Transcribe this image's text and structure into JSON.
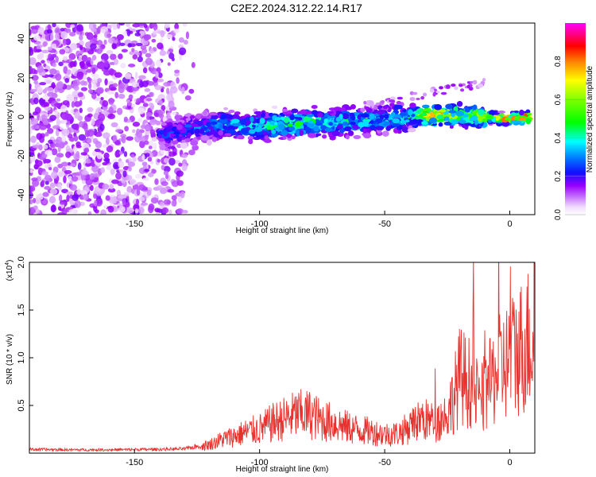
{
  "title": "C2E2.2024.312.22.14.R17",
  "top_panel": {
    "xlabel": "Height of straight line (km)",
    "ylabel": "Frequency (Hz)",
    "x_ticks": [
      "-150",
      "-100",
      "-50",
      "0"
    ],
    "y_ticks": [
      "40",
      "20",
      "0",
      "-20",
      "-40"
    ]
  },
  "colorbar": {
    "label": "Normalized spectral amplitude",
    "ticks": [
      "0.0",
      "0.2",
      "0.4",
      "0.6",
      "0.8"
    ]
  },
  "bottom_panel": {
    "xlabel": "Height of straight line (km)",
    "ylabel": "SNR (10 * v/v)",
    "multiplier_label": "(x10",
    "multiplier_exp": "4",
    "multiplier_close": ")",
    "x_ticks": [
      "-150",
      "-100",
      "-50",
      "0"
    ],
    "y_ticks": [
      "2.0",
      "1.5",
      "1.0",
      "0.5"
    ]
  },
  "chart_data": [
    {
      "type": "heatmap",
      "title": "C2E2.2024.312.22.14.R17",
      "xlabel": "Height of straight line (km)",
      "ylabel": "Frequency (Hz)",
      "xlim": [
        -192,
        10
      ],
      "ylim": [
        -50,
        48
      ],
      "colorbar": {
        "label": "Normalized spectral amplitude",
        "range": [
          0.0,
          1.0
        ],
        "colormap": "rainbow (white-purple-blue-cyan-green-yellow-red)"
      },
      "ridge": {
        "x": [
          -140,
          -130,
          -120,
          -110,
          -100,
          -90,
          -80,
          -70,
          -60,
          -50,
          -40,
          -30,
          -20,
          -10,
          0,
          8
        ],
        "frequency": [
          -10,
          -6,
          -5,
          -4,
          -5,
          -4,
          -3,
          -3,
          -2,
          -1,
          0,
          1,
          1,
          0,
          -1,
          0
        ],
        "peak_amplitude": [
          0.25,
          0.3,
          0.35,
          0.4,
          0.45,
          0.5,
          0.5,
          0.45,
          0.45,
          0.4,
          0.45,
          0.9,
          0.6,
          0.7,
          0.95,
          1.0
        ]
      }
    },
    {
      "type": "line",
      "xlabel": "Height of straight line (km)",
      "ylabel": "SNR (10 * v/v)",
      "xlim": [
        -192,
        10
      ],
      "ylim": [
        0,
        20000
      ],
      "y_multiplier": 10000,
      "series": [
        {
          "color": "#e8322e",
          "x": [
            -192,
            -175,
            -160,
            -150,
            -140,
            -130,
            -125,
            -120,
            -115,
            -110,
            -105,
            -100,
            -95,
            -90,
            -85,
            -80,
            -75,
            -70,
            -65,
            -60,
            -55,
            -50,
            -45,
            -40,
            -35,
            -30,
            -25,
            -22,
            -20,
            -15,
            -12,
            -10,
            -5,
            0,
            5,
            10
          ],
          "y": [
            400,
            350,
            350,
            380,
            400,
            450,
            700,
            1000,
            1600,
            2000,
            2500,
            2800,
            3500,
            4000,
            4500,
            4500,
            3800,
            3500,
            3000,
            2700,
            2500,
            2200,
            2300,
            3000,
            4000,
            3500,
            4500,
            7000,
            9000,
            8000,
            6000,
            7000,
            9500,
            11000,
            12500,
            14000
          ]
        }
      ]
    }
  ]
}
